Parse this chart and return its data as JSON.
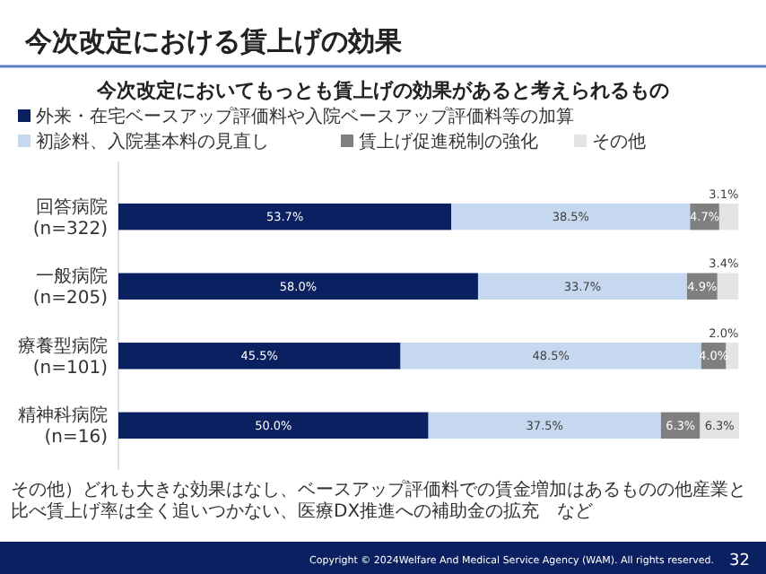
{
  "chart_data": {
    "type": "bar",
    "orientation": "horizontal",
    "stacked": true,
    "title": "今次改定における賃上げの効果",
    "subtitle": "今次改定においてもっとも賃上げの効果があると考えられるもの",
    "categories": [
      "回答病院\n(n=322)",
      "一般病院\n(n=205)",
      "療養型病院\n(n=101)",
      "精神科病院\n(n=16)"
    ],
    "series": [
      {
        "name": "外来・在宅ベースアップ評価料や入院ベースアップ評価料等の加算",
        "color": "#0b2060",
        "values": [
          53.7,
          58.0,
          45.5,
          50.0
        ],
        "value_labels": [
          "53.7%",
          "58.0%",
          "45.5%",
          "50.0%"
        ]
      },
      {
        "name": "初診料、入院基本料の見直し",
        "color": "#c5d8ef",
        "values": [
          38.5,
          33.7,
          48.5,
          37.5
        ],
        "value_labels": [
          "38.5%",
          "33.7%",
          "48.5%",
          "37.5%"
        ]
      },
      {
        "name": "賃上げ促進税制の強化",
        "color": "#7f7f7f",
        "values": [
          4.7,
          4.9,
          4.0,
          6.3
        ],
        "value_labels": [
          "4.7%",
          "4.9%",
          "4.0%",
          "6.3%"
        ]
      },
      {
        "name": "その他",
        "color": "#e4e4e4",
        "values": [
          3.1,
          3.4,
          2.0,
          6.3
        ],
        "value_labels": [
          "3.1%",
          "3.4%",
          "2.0%",
          "6.3%"
        ]
      }
    ],
    "legend": "top",
    "annotations": [
      "その他）どれも大きな効果はなし、ベースアップ評価料での賃金増加はあるものの他産業と比べ賃上げ率は全く追いつかない、医療DX推進への補助金の拡充　など",
      "Copyright © 2024Welfare And Medical Service Agency (WAM). All rights reserved.",
      "32"
    ]
  }
}
